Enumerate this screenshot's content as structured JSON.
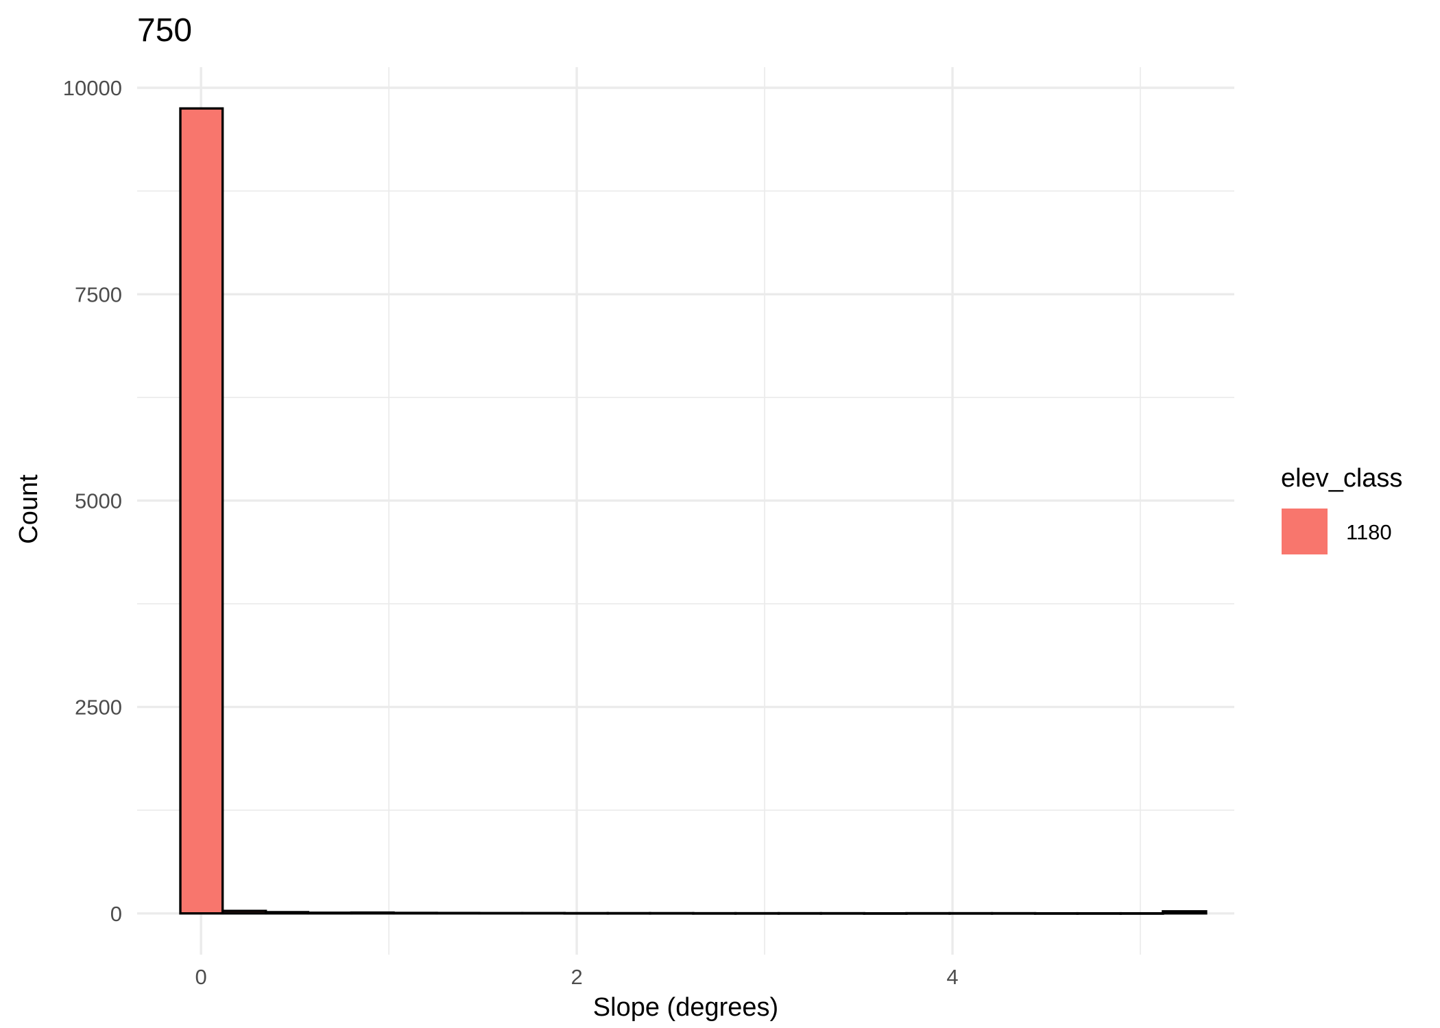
{
  "chart_data": {
    "type": "bar",
    "title": "750",
    "xlabel": "Slope (degrees)",
    "ylabel": "Count",
    "xlim": [
      -0.34,
      5.5
    ],
    "ylim": [
      -500,
      10250
    ],
    "x_ticks": [
      0,
      2,
      4
    ],
    "y_ticks": [
      0,
      2500,
      5000,
      7500,
      10000
    ],
    "grid": true,
    "legend": {
      "title": "elev_class",
      "position": "right"
    },
    "bin_width": 0.2275,
    "series": [
      {
        "name": "1180",
        "color": "#F8766D",
        "bins": [
          {
            "x0": -0.11,
            "x1": 0.115,
            "count": 9750
          },
          {
            "x0": 0.115,
            "x1": 0.345,
            "count": 30
          },
          {
            "x0": 0.345,
            "x1": 0.57,
            "count": 15
          },
          {
            "x0": 0.57,
            "x1": 0.8,
            "count": 8
          },
          {
            "x0": 0.8,
            "x1": 1.025,
            "count": 10
          },
          {
            "x0": 1.025,
            "x1": 1.255,
            "count": 6
          },
          {
            "x0": 1.255,
            "x1": 1.48,
            "count": 5
          },
          {
            "x0": 1.48,
            "x1": 1.71,
            "count": 4
          },
          {
            "x0": 1.71,
            "x1": 1.935,
            "count": 4
          },
          {
            "x0": 1.935,
            "x1": 2.165,
            "count": 3
          },
          {
            "x0": 2.165,
            "x1": 2.39,
            "count": 3
          },
          {
            "x0": 2.39,
            "x1": 2.62,
            "count": 3
          },
          {
            "x0": 2.62,
            "x1": 2.845,
            "count": 2
          },
          {
            "x0": 2.845,
            "x1": 3.075,
            "count": 2
          },
          {
            "x0": 3.075,
            "x1": 3.3,
            "count": 2
          },
          {
            "x0": 3.3,
            "x1": 3.53,
            "count": 2
          },
          {
            "x0": 3.53,
            "x1": 3.755,
            "count": 1
          },
          {
            "x0": 3.755,
            "x1": 3.985,
            "count": 2
          },
          {
            "x0": 3.985,
            "x1": 4.21,
            "count": 2
          },
          {
            "x0": 4.21,
            "x1": 4.44,
            "count": 2
          },
          {
            "x0": 4.44,
            "x1": 4.665,
            "count": 1
          },
          {
            "x0": 4.665,
            "x1": 4.895,
            "count": 1
          },
          {
            "x0": 4.895,
            "x1": 5.12,
            "count": 1
          },
          {
            "x0": 5.12,
            "x1": 5.35,
            "count": 25
          }
        ]
      }
    ]
  }
}
